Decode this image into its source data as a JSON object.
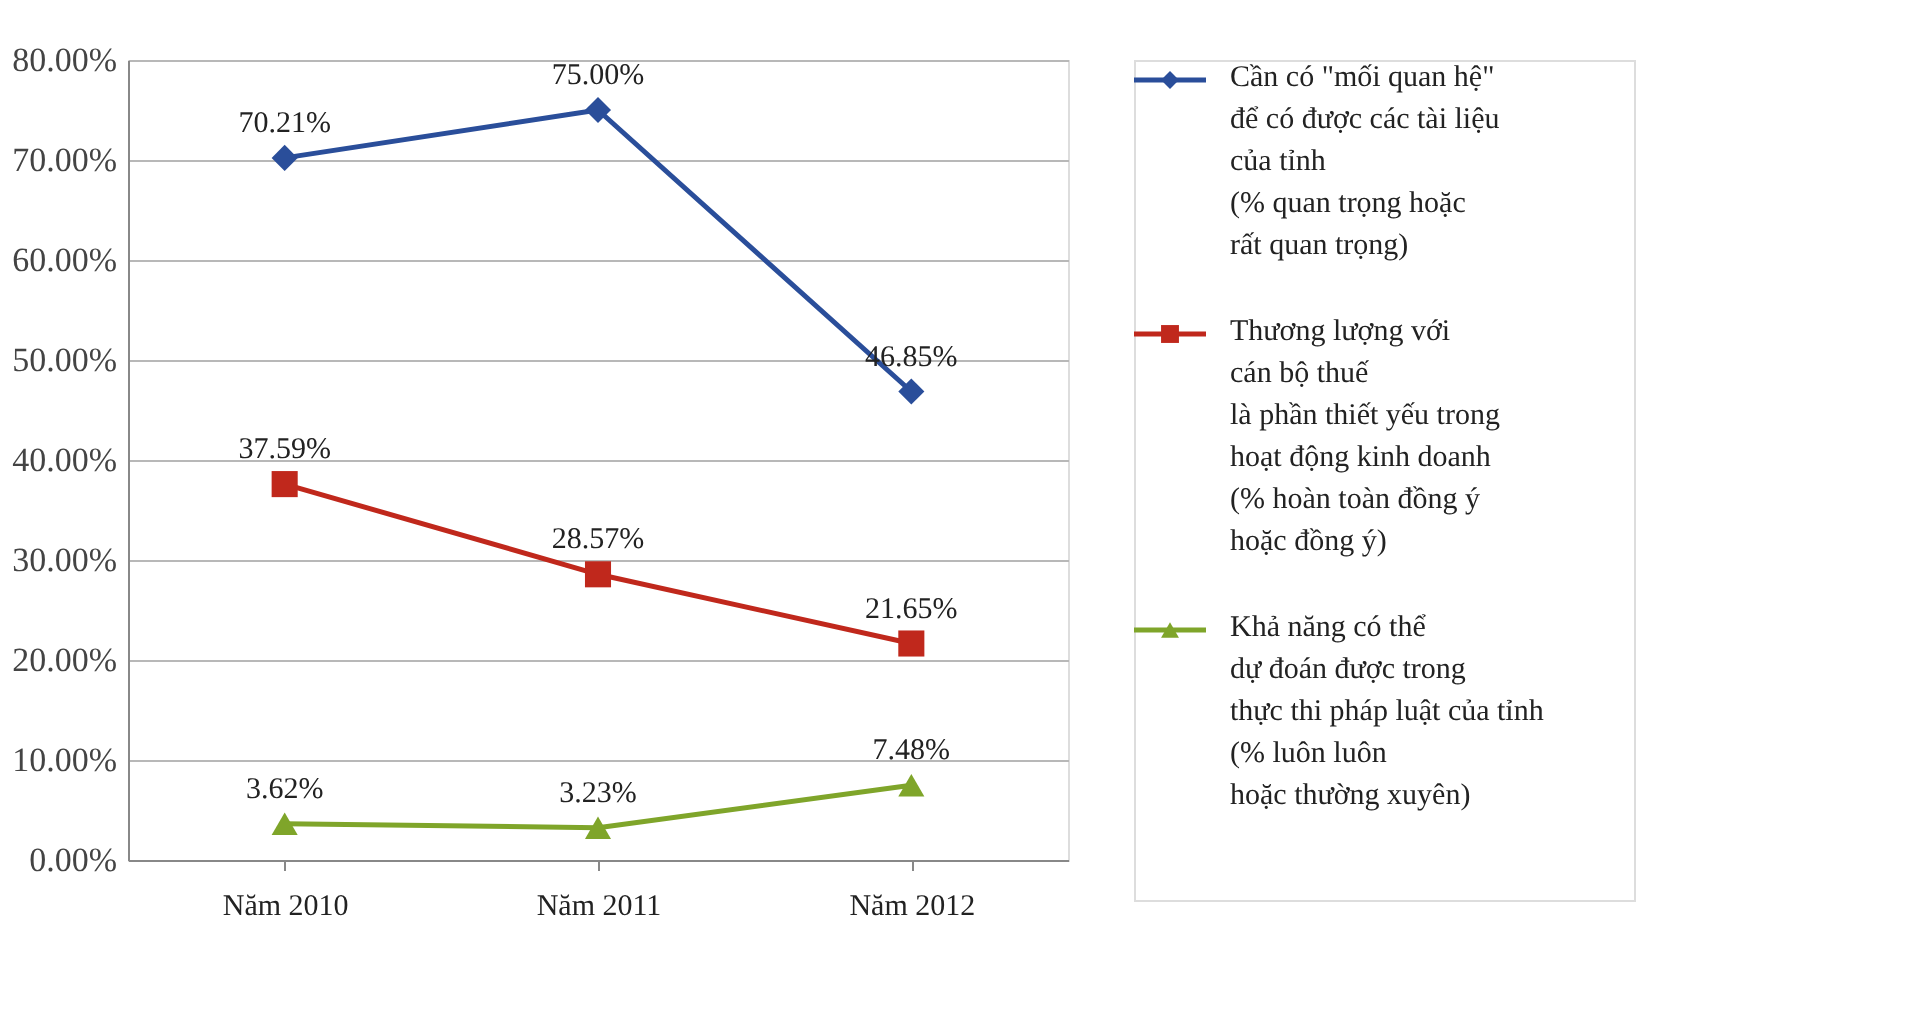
{
  "chart_data": {
    "type": "line",
    "categories": [
      "Năm 2010",
      "Năm 2011",
      "Năm 2012"
    ],
    "series": [
      {
        "name": "Cần có \"mối quan hệ\"\nđể có được các tài liệu\ncủa tỉnh\n(% quan trọng hoặc\nrất quan trọng)",
        "color": "#2a4e9a",
        "marker": "diamond",
        "values": [
          70.21,
          75.0,
          46.85
        ],
        "value_labels": [
          "70.21%",
          "75.00%",
          "46.85%"
        ]
      },
      {
        "name": "Thương lượng với\ncán bộ thuế\nlà phần thiết yếu trong\nhoạt động kinh doanh\n(% hoàn toàn đồng ý\nhoặc đồng ý)",
        "color": "#c0281c",
        "marker": "square",
        "values": [
          37.59,
          28.57,
          21.65
        ],
        "value_labels": [
          "37.59%",
          "28.57%",
          "21.65%"
        ]
      },
      {
        "name": "Khả năng có thể\ndự đoán được trong\nthực thi pháp luật của tỉnh\n(% luôn luôn\nhoặc thường xuyên)",
        "color": "#7fa52a",
        "marker": "triangle",
        "values": [
          3.62,
          3.23,
          7.48
        ],
        "value_labels": [
          "3.62%",
          "3.23%",
          "7.48%"
        ]
      }
    ],
    "ylim": [
      0,
      80
    ],
    "yticks": [
      {
        "value": 0,
        "label": "0.00%"
      },
      {
        "value": 10,
        "label": "10.00%"
      },
      {
        "value": 20,
        "label": "20.00%"
      },
      {
        "value": 30,
        "label": "30.00%"
      },
      {
        "value": 40,
        "label": "40.00%"
      },
      {
        "value": 50,
        "label": "50.00%"
      },
      {
        "value": 60,
        "label": "60.00%"
      },
      {
        "value": 70,
        "label": "70.00%"
      },
      {
        "value": 80,
        "label": "80.00%"
      }
    ],
    "grid": "y",
    "legend": "right",
    "line_style": "solid"
  }
}
